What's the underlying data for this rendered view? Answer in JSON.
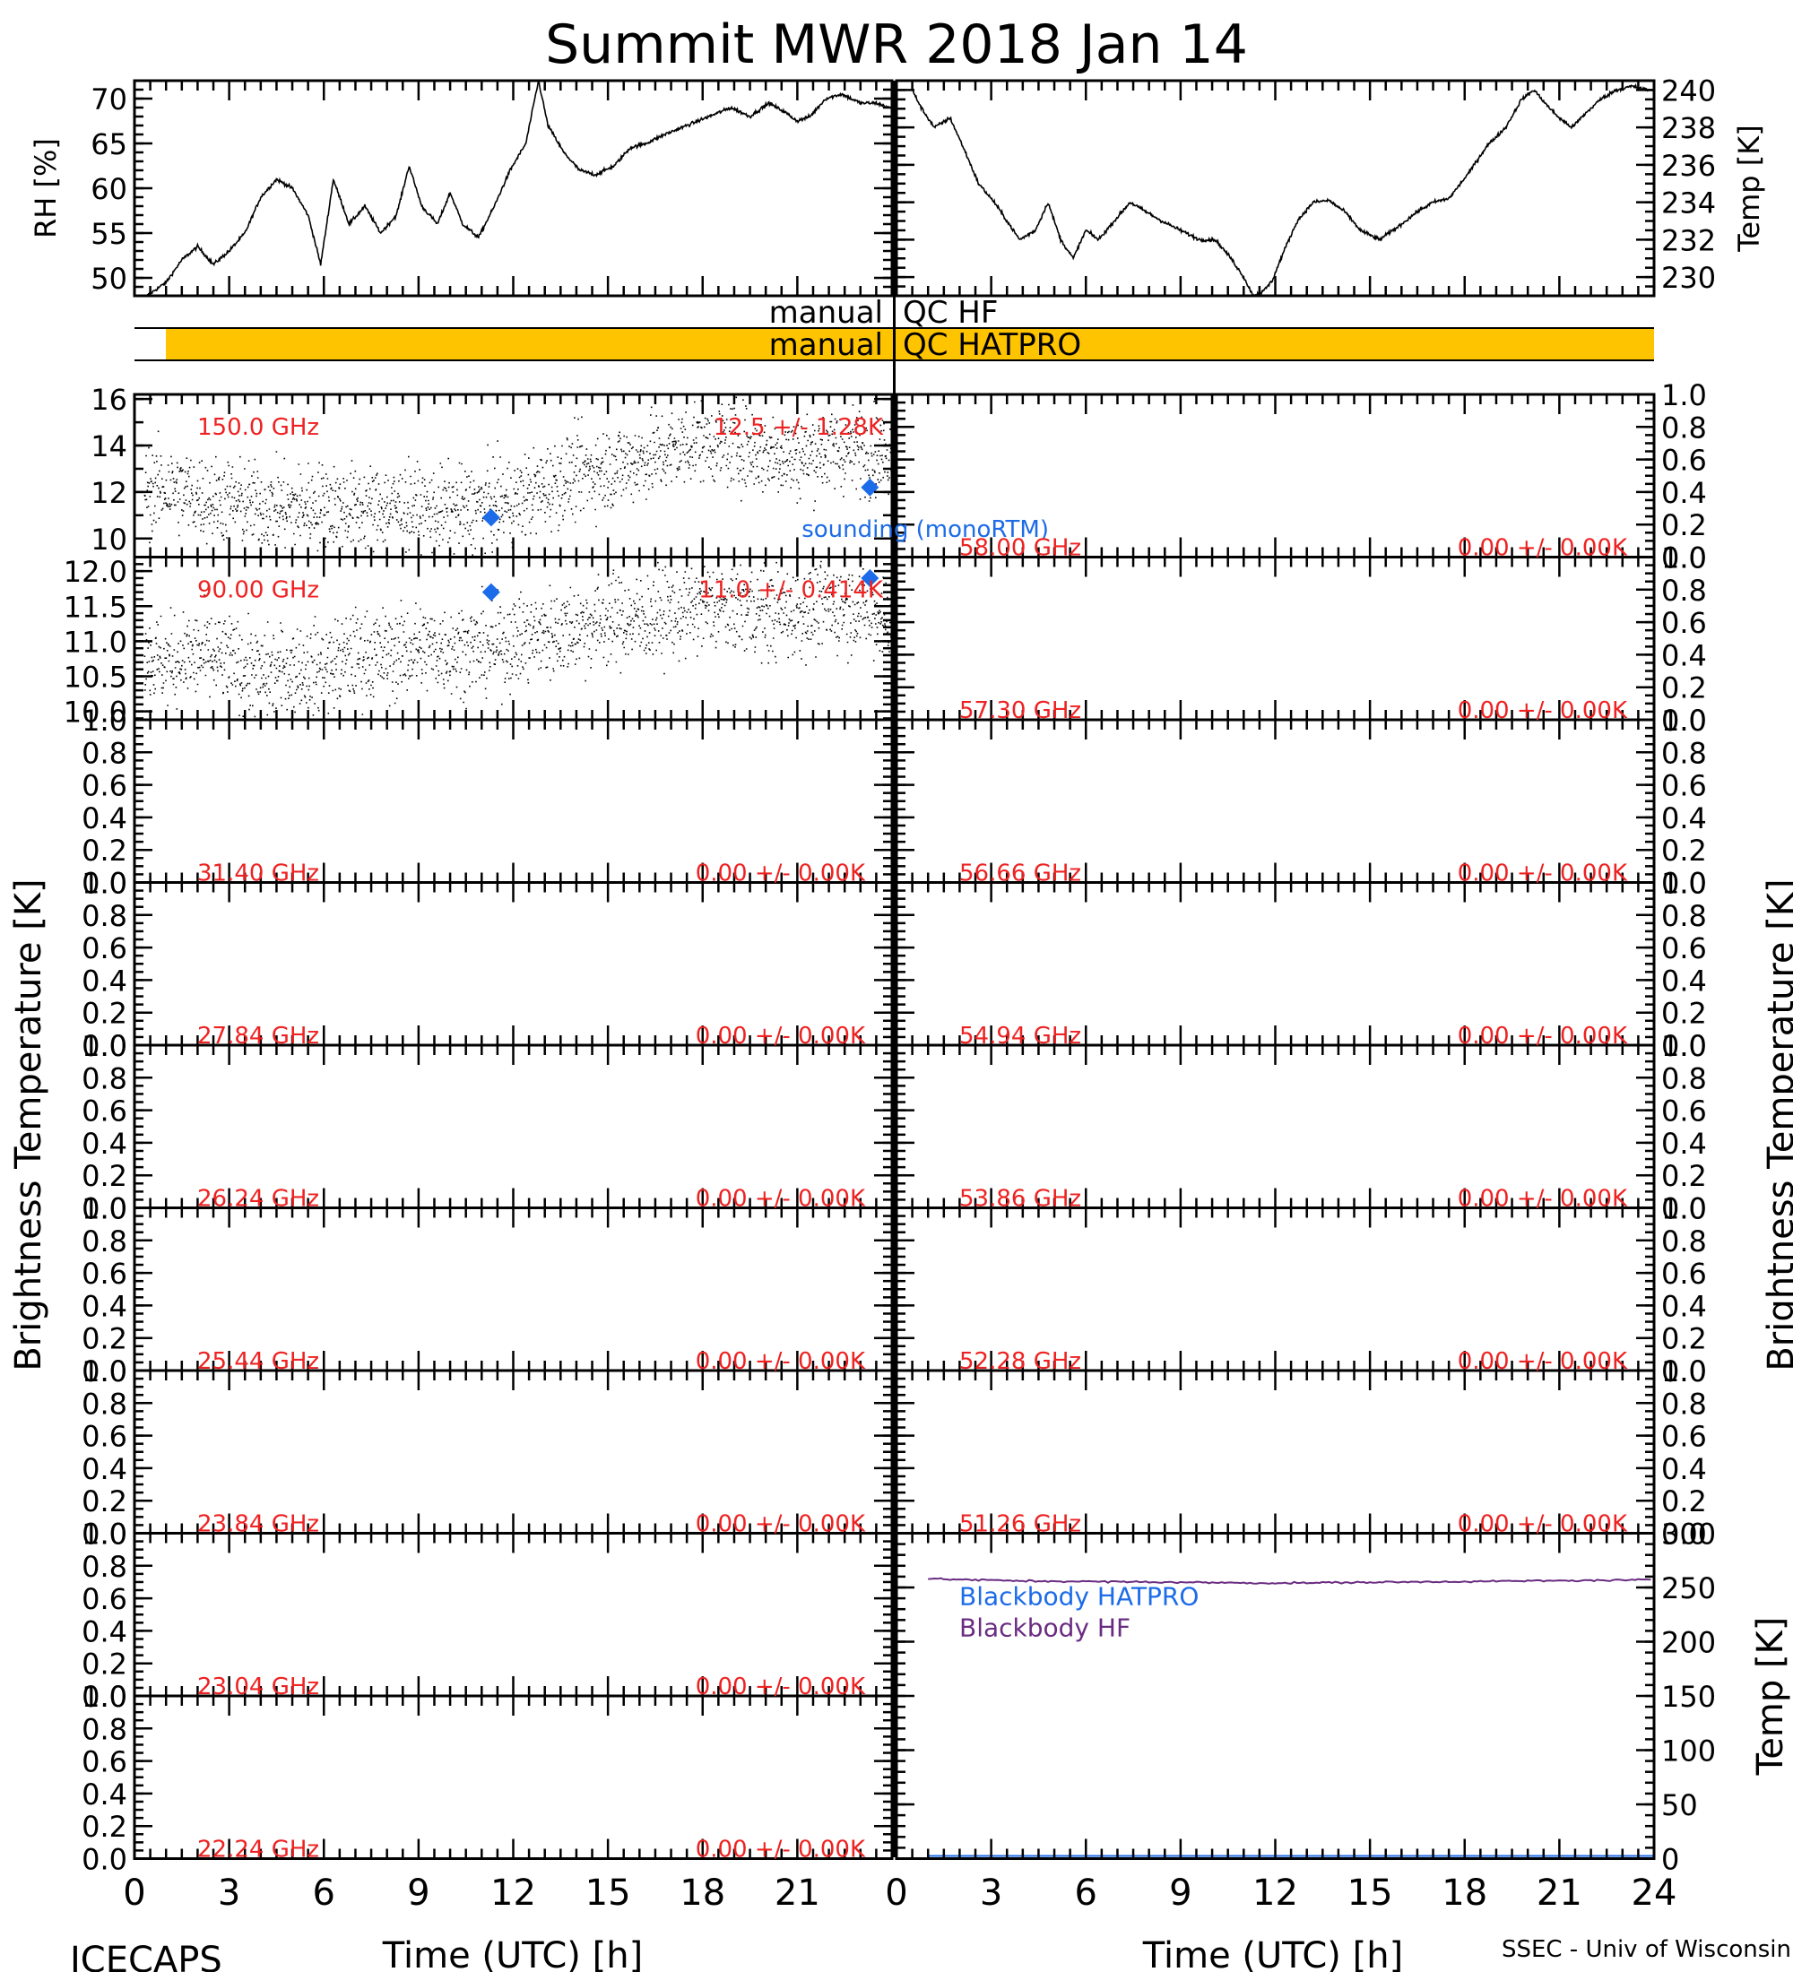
{
  "title": "Summit MWR 2018 Jan 14",
  "footer": {
    "left": "ICECAPS",
    "right": "SSEC - Univ of Wisconsin"
  },
  "left_ylabel": "Brightness Temperature [K]",
  "right_ylabel": "Brightness Temperature [K]",
  "xlabel": "Time (UTC) [h]",
  "x_ticks": [
    "0",
    "3",
    "6",
    "9",
    "12",
    "15",
    "18",
    "21",
    "24"
  ],
  "x_ticks_left": [
    "0",
    "3",
    "6",
    "9",
    "12",
    "15",
    "18",
    "21"
  ],
  "qc": {
    "hf_prefix": "manual",
    "hf_label": "QC HF",
    "hatpro_prefix": "manual",
    "hatpro_label": "QC HATPRO",
    "hatpro_bar_color": "#ffc400",
    "hatpro_bar_x": [
      1.0,
      24.0
    ]
  },
  "legend": {
    "sounding": "sounding (monoRTM)",
    "sounding_color": "#1c6be8",
    "bb_hatpro": "Blackbody HATPRO",
    "bb_hatpro_color": "#1c6be8",
    "bb_hf": "Blackbody HF",
    "bb_hf_color": "#6a2c82"
  },
  "channels_left": [
    {
      "freq": "150.0 GHz",
      "stats": "12.5 +/- 1.28K"
    },
    {
      "freq": "90.00 GHz",
      "stats": "11.0 +/- 0.414K"
    },
    {
      "freq": "31.40 GHz",
      "stats": "0.00 +/- 0.00K"
    },
    {
      "freq": "27.84 GHz",
      "stats": "0.00 +/- 0.00K"
    },
    {
      "freq": "26.24 GHz",
      "stats": "0.00 +/- 0.00K"
    },
    {
      "freq": "25.44 GHz",
      "stats": "0.00 +/- 0.00K"
    },
    {
      "freq": "23.84 GHz",
      "stats": "0.00 +/- 0.00K"
    },
    {
      "freq": "23.04 GHz",
      "stats": "0.00 +/- 0.00K"
    },
    {
      "freq": "22.24 GHz",
      "stats": "0.00 +/- 0.00K"
    }
  ],
  "channels_right": [
    {
      "freq": "58.00 GHz",
      "stats": "0.00 +/- 0.00K"
    },
    {
      "freq": "57.30 GHz",
      "stats": "0.00 +/- 0.00K"
    },
    {
      "freq": "56.66 GHz",
      "stats": "0.00 +/- 0.00K"
    },
    {
      "freq": "54.94 GHz",
      "stats": "0.00 +/- 0.00K"
    },
    {
      "freq": "53.86 GHz",
      "stats": "0.00 +/- 0.00K"
    },
    {
      "freq": "52.28 GHz",
      "stats": "0.00 +/- 0.00K"
    },
    {
      "freq": "51.26 GHz",
      "stats": "0.00 +/- 0.00K"
    }
  ],
  "label_color": "#ee2222",
  "trace_color": "#000000",
  "chart_data": [
    {
      "type": "line",
      "ylabel": "RH [%]",
      "x": [
        0.4,
        1.0,
        1.5,
        2.0,
        2.5,
        3.0,
        3.5,
        4.0,
        4.5,
        5.0,
        5.5,
        5.9,
        6.3,
        6.8,
        7.3,
        7.8,
        8.3,
        8.7,
        9.1,
        9.6,
        10.0,
        10.4,
        10.9,
        11.4,
        11.9,
        12.4,
        12.8,
        13.1,
        13.6,
        14.1,
        14.6,
        15.2,
        15.7,
        16.2,
        16.8,
        17.5,
        18.2,
        18.9,
        19.5,
        20.1,
        20.6,
        21.0,
        21.4,
        21.9,
        22.4,
        23.0,
        23.5,
        23.9
      ],
      "y": [
        48,
        49.5,
        52,
        53.5,
        51.5,
        53,
        55,
        59,
        61,
        60,
        57,
        51.5,
        61,
        56,
        58,
        55,
        57,
        62.5,
        58,
        56,
        59.5,
        56,
        54.5,
        58,
        62,
        65,
        72,
        67,
        64,
        62,
        61.5,
        62.5,
        64.5,
        65,
        66,
        67,
        68,
        69,
        68,
        69.5,
        68.5,
        67.5,
        68,
        70,
        70.5,
        69.5,
        69.5,
        69
      ],
      "yticks": [
        50,
        55,
        60,
        65,
        70
      ],
      "ylim": [
        48,
        72
      ]
    },
    {
      "type": "line",
      "ylabel": "Temp [K]",
      "x": [
        0.5,
        0.8,
        1.2,
        1.7,
        2.1,
        2.6,
        3.1,
        3.5,
        3.9,
        4.4,
        4.8,
        5.2,
        5.6,
        6.0,
        6.4,
        6.9,
        7.4,
        7.9,
        8.4,
        9.0,
        9.6,
        10.1,
        10.6,
        11.0,
        11.3,
        11.6,
        11.9,
        12.3,
        12.7,
        13.2,
        13.7,
        14.2,
        14.7,
        15.3,
        15.9,
        16.5,
        17.0,
        17.5,
        18.1,
        18.7,
        19.3,
        19.8,
        20.2,
        20.6,
        21.0,
        21.4,
        21.8,
        22.3,
        22.8,
        23.3,
        23.8
      ],
      "y": [
        240,
        239,
        238,
        238.5,
        237,
        235,
        234,
        233,
        232,
        232.5,
        234,
        232,
        231,
        232.5,
        232,
        233,
        234,
        233.5,
        233,
        232.5,
        232,
        232,
        231,
        230,
        229,
        229.2,
        229.8,
        231.5,
        233,
        234,
        234.1,
        233.5,
        232.5,
        232,
        232.7,
        233.5,
        234,
        234.2,
        235.5,
        237,
        238,
        239.5,
        240,
        239.2,
        238.5,
        238,
        238.7,
        239.5,
        240,
        240.2,
        240
      ],
      "yticks": [
        230,
        232,
        234,
        236,
        238,
        240
      ],
      "ylim": [
        229,
        240.5
      ]
    },
    {
      "type": "scatter",
      "name": "150.0 GHz",
      "x": [
        0,
        1,
        2,
        3,
        4,
        5,
        6,
        7,
        8,
        9,
        10,
        11,
        12,
        13,
        14,
        15,
        16,
        17,
        18,
        19,
        20,
        21,
        22,
        23,
        24
      ],
      "y": [
        12.0,
        12.2,
        11.8,
        11.6,
        11.4,
        11.3,
        11.5,
        11.3,
        11.4,
        11.2,
        11.2,
        11.4,
        11.6,
        12.2,
        12.8,
        13.0,
        13.4,
        13.8,
        14.3,
        14.0,
        13.7,
        13.5,
        13.9,
        13.8,
        13.6
      ],
      "yticks": [
        10,
        12,
        14,
        16
      ],
      "ylim": [
        9.2,
        16.2
      ],
      "sounding": {
        "x": [
          11.3,
          23.3
        ],
        "y": [
          10.9,
          12.2
        ]
      }
    },
    {
      "type": "scatter",
      "name": "90.00 GHz",
      "x": [
        0,
        1,
        2,
        3,
        4,
        5,
        6,
        7,
        8,
        9,
        10,
        11,
        12,
        13,
        14,
        15,
        16,
        17,
        18,
        19,
        20,
        21,
        22,
        23,
        24
      ],
      "y": [
        10.8,
        10.7,
        10.8,
        10.7,
        10.5,
        10.6,
        10.6,
        10.8,
        10.8,
        10.9,
        10.9,
        10.9,
        11.0,
        11.1,
        11.2,
        11.3,
        11.3,
        11.4,
        11.5,
        11.5,
        11.4,
        11.4,
        11.5,
        11.5,
        11.3
      ],
      "yticks": [
        10.0,
        10.5,
        11.0,
        11.5,
        12.0
      ],
      "ylim": [
        9.88,
        12.2
      ],
      "sounding": {
        "x": [
          11.3,
          23.3
        ],
        "y": [
          11.7,
          11.9
        ]
      }
    },
    {
      "type": "line",
      "name": "Blackbody HF",
      "x": [
        1,
        4,
        8,
        12,
        16,
        20,
        24
      ],
      "y": [
        258,
        256,
        255,
        254,
        255,
        256,
        257
      ],
      "yticks": [
        0,
        50,
        100,
        150,
        200,
        250,
        300
      ],
      "ylim": [
        0,
        300
      ]
    }
  ]
}
